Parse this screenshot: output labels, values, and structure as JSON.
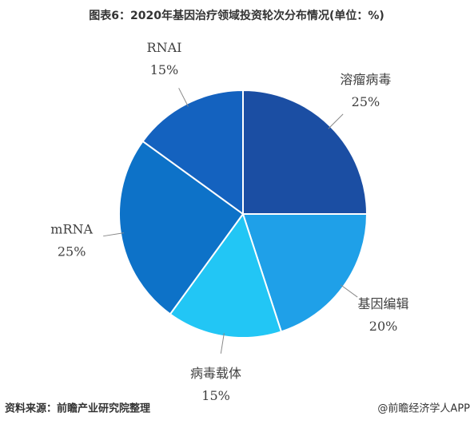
{
  "chart_data": {
    "type": "pie",
    "title": "图表6：2020年基因治疗领域投资轮次分布情况(单位：%)",
    "categories": [
      "溶瘤病毒",
      "基因编辑",
      "病毒载体",
      "mRNA",
      "RNAI"
    ],
    "values": [
      25,
      20,
      15,
      25,
      15
    ],
    "value_labels": [
      "25%",
      "20%",
      "15%",
      "25%",
      "15%"
    ],
    "colors": [
      "#1b4ea3",
      "#1fa0e8",
      "#22c6f5",
      "#0d72c8",
      "#1462bf"
    ],
    "source": "资料来源：前瞻产业研究院整理",
    "credit": "@前瞻经济学人APP"
  }
}
